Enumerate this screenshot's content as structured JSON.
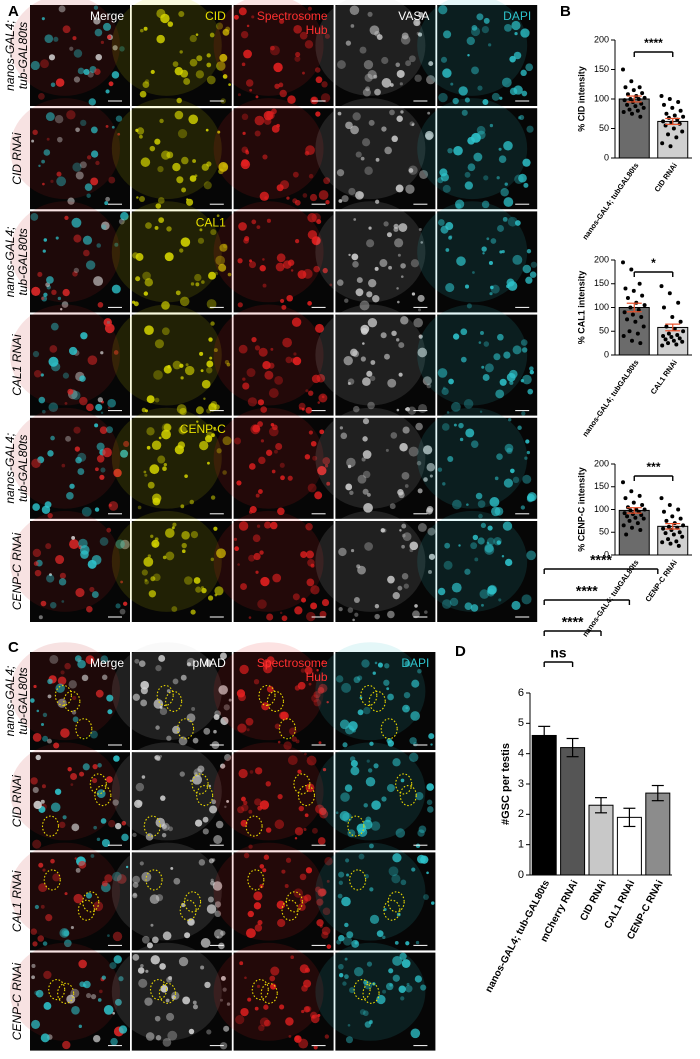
{
  "panel_labels": [
    "A",
    "B",
    "C",
    "D"
  ],
  "panel_a": {
    "channels": [
      [
        "Merge"
      ],
      [
        "Spectrosome",
        "Hub"
      ],
      [
        "VASA"
      ],
      [
        "DAPI"
      ]
    ],
    "rows": [
      {
        "label": [
          "nanos-GAL4;",
          "tub-GAL80ts"
        ],
        "marker": "CID"
      },
      {
        "label": [
          "CID RNAi"
        ]
      },
      {
        "label": [
          "nanos-GAL4;",
          "tub-GAL80ts"
        ],
        "marker": "CAL1"
      },
      {
        "label": [
          "CAL1 RNAi"
        ]
      },
      {
        "label": [
          "nanos-GAL4;",
          "tub-GAL80ts"
        ],
        "marker": "CENP-C"
      },
      {
        "label": [
          "CENP-C RNAi"
        ]
      }
    ]
  },
  "panel_c": {
    "channels": [
      [
        "Merge"
      ],
      [
        "pMAD"
      ],
      [
        "Spectrosome",
        "Hub"
      ],
      [
        "DAPI"
      ]
    ],
    "rows": [
      {
        "label": [
          "nanos-GAL4;",
          "tub-GAL80ts"
        ]
      },
      {
        "label": [
          "CID RNAi"
        ]
      },
      {
        "label": [
          "CAL1 RNAi"
        ]
      },
      {
        "label": [
          "CENP-C RNAi"
        ]
      }
    ]
  },
  "chart_data": [
    {
      "type": "bar",
      "ylabel": "% CID intensity",
      "categories": [
        "nanos-GAL4; tubGAL80ts",
        "CID RNAi"
      ],
      "values": [
        100,
        62
      ],
      "errors": [
        5,
        5
      ],
      "colors": [
        "#6b6b6b",
        "#d0d0d0"
      ],
      "error_color": "#e8502a",
      "points": [
        [
          150,
          130,
          120,
          120,
          115,
          110,
          108,
          105,
          102,
          100,
          100,
          98,
          95,
          92,
          90,
          88,
          85,
          82,
          80,
          78,
          75,
          70
        ],
        [
          105,
          100,
          95,
          90,
          85,
          80,
          75,
          72,
          70,
          68,
          65,
          62,
          60,
          58,
          55,
          50,
          45,
          40,
          35,
          25,
          20
        ]
      ],
      "ylim": [
        0,
        200
      ],
      "yticks": [
        0,
        50,
        100,
        150,
        200
      ],
      "significance": "****"
    },
    {
      "type": "bar",
      "ylabel": "% CAL1 intensity",
      "categories": [
        "nanos-GAL4; tubGAL80ts",
        "CAL1 RNAi"
      ],
      "values": [
        100,
        58
      ],
      "errors": [
        9,
        7
      ],
      "colors": [
        "#6b6b6b",
        "#d0d0d0"
      ],
      "error_color": "#e8502a",
      "points": [
        [
          195,
          180,
          150,
          140,
          135,
          125,
          120,
          110,
          105,
          100,
          95,
          90,
          85,
          80,
          75,
          70,
          60,
          50,
          45,
          40,
          30,
          25
        ],
        [
          145,
          130,
          110,
          100,
          80,
          70,
          60,
          55,
          50,
          45,
          42,
          40,
          38,
          35,
          33,
          30,
          28,
          25,
          22,
          20
        ]
      ],
      "ylim": [
        0,
        200
      ],
      "yticks": [
        0,
        50,
        100,
        150,
        200
      ],
      "significance": "*"
    },
    {
      "type": "bar",
      "ylabel": "% CENP-C intensity",
      "categories": [
        "nanos-GAL4; tubGAL80ts",
        "CENP-C RNAi"
      ],
      "values": [
        98,
        63
      ],
      "errors": [
        6,
        6
      ],
      "colors": [
        "#6b6b6b",
        "#d0d0d0"
      ],
      "error_color": "#e8502a",
      "points": [
        [
          160,
          140,
          130,
          125,
          115,
          110,
          105,
          100,
          100,
          98,
          95,
          92,
          90,
          88,
          85,
          82,
          80,
          75,
          70,
          65,
          60,
          55,
          45
        ],
        [
          125,
          110,
          100,
          95,
          85,
          80,
          75,
          70,
          65,
          62,
          60,
          58,
          55,
          50,
          48,
          45,
          40,
          35,
          30,
          28,
          25,
          20
        ]
      ],
      "ylim": [
        0,
        200
      ],
      "yticks": [
        0,
        50,
        100,
        150,
        200
      ],
      "significance": "***"
    },
    {
      "type": "bar",
      "ylabel": "#GSC per testis",
      "categories": [
        "nanos-GAL4; tub-GAL80ts",
        "mCherry RNAi",
        "CID RNAi",
        "CAL1 RNAi",
        "CENP-C RNAi"
      ],
      "values": [
        4.6,
        4.2,
        2.3,
        1.9,
        2.7
      ],
      "errors": [
        0.3,
        0.3,
        0.25,
        0.3,
        0.25
      ],
      "colors": [
        "#000000",
        "#555555",
        "#c8c8c8",
        "#ffffff",
        "#8c8c8c"
      ],
      "error_color": "#000000",
      "ylim": [
        0,
        6
      ],
      "yticks": [
        0,
        1,
        2,
        3,
        4,
        5,
        6
      ],
      "significance": [
        "ns",
        "****",
        "****",
        "****"
      ]
    }
  ]
}
